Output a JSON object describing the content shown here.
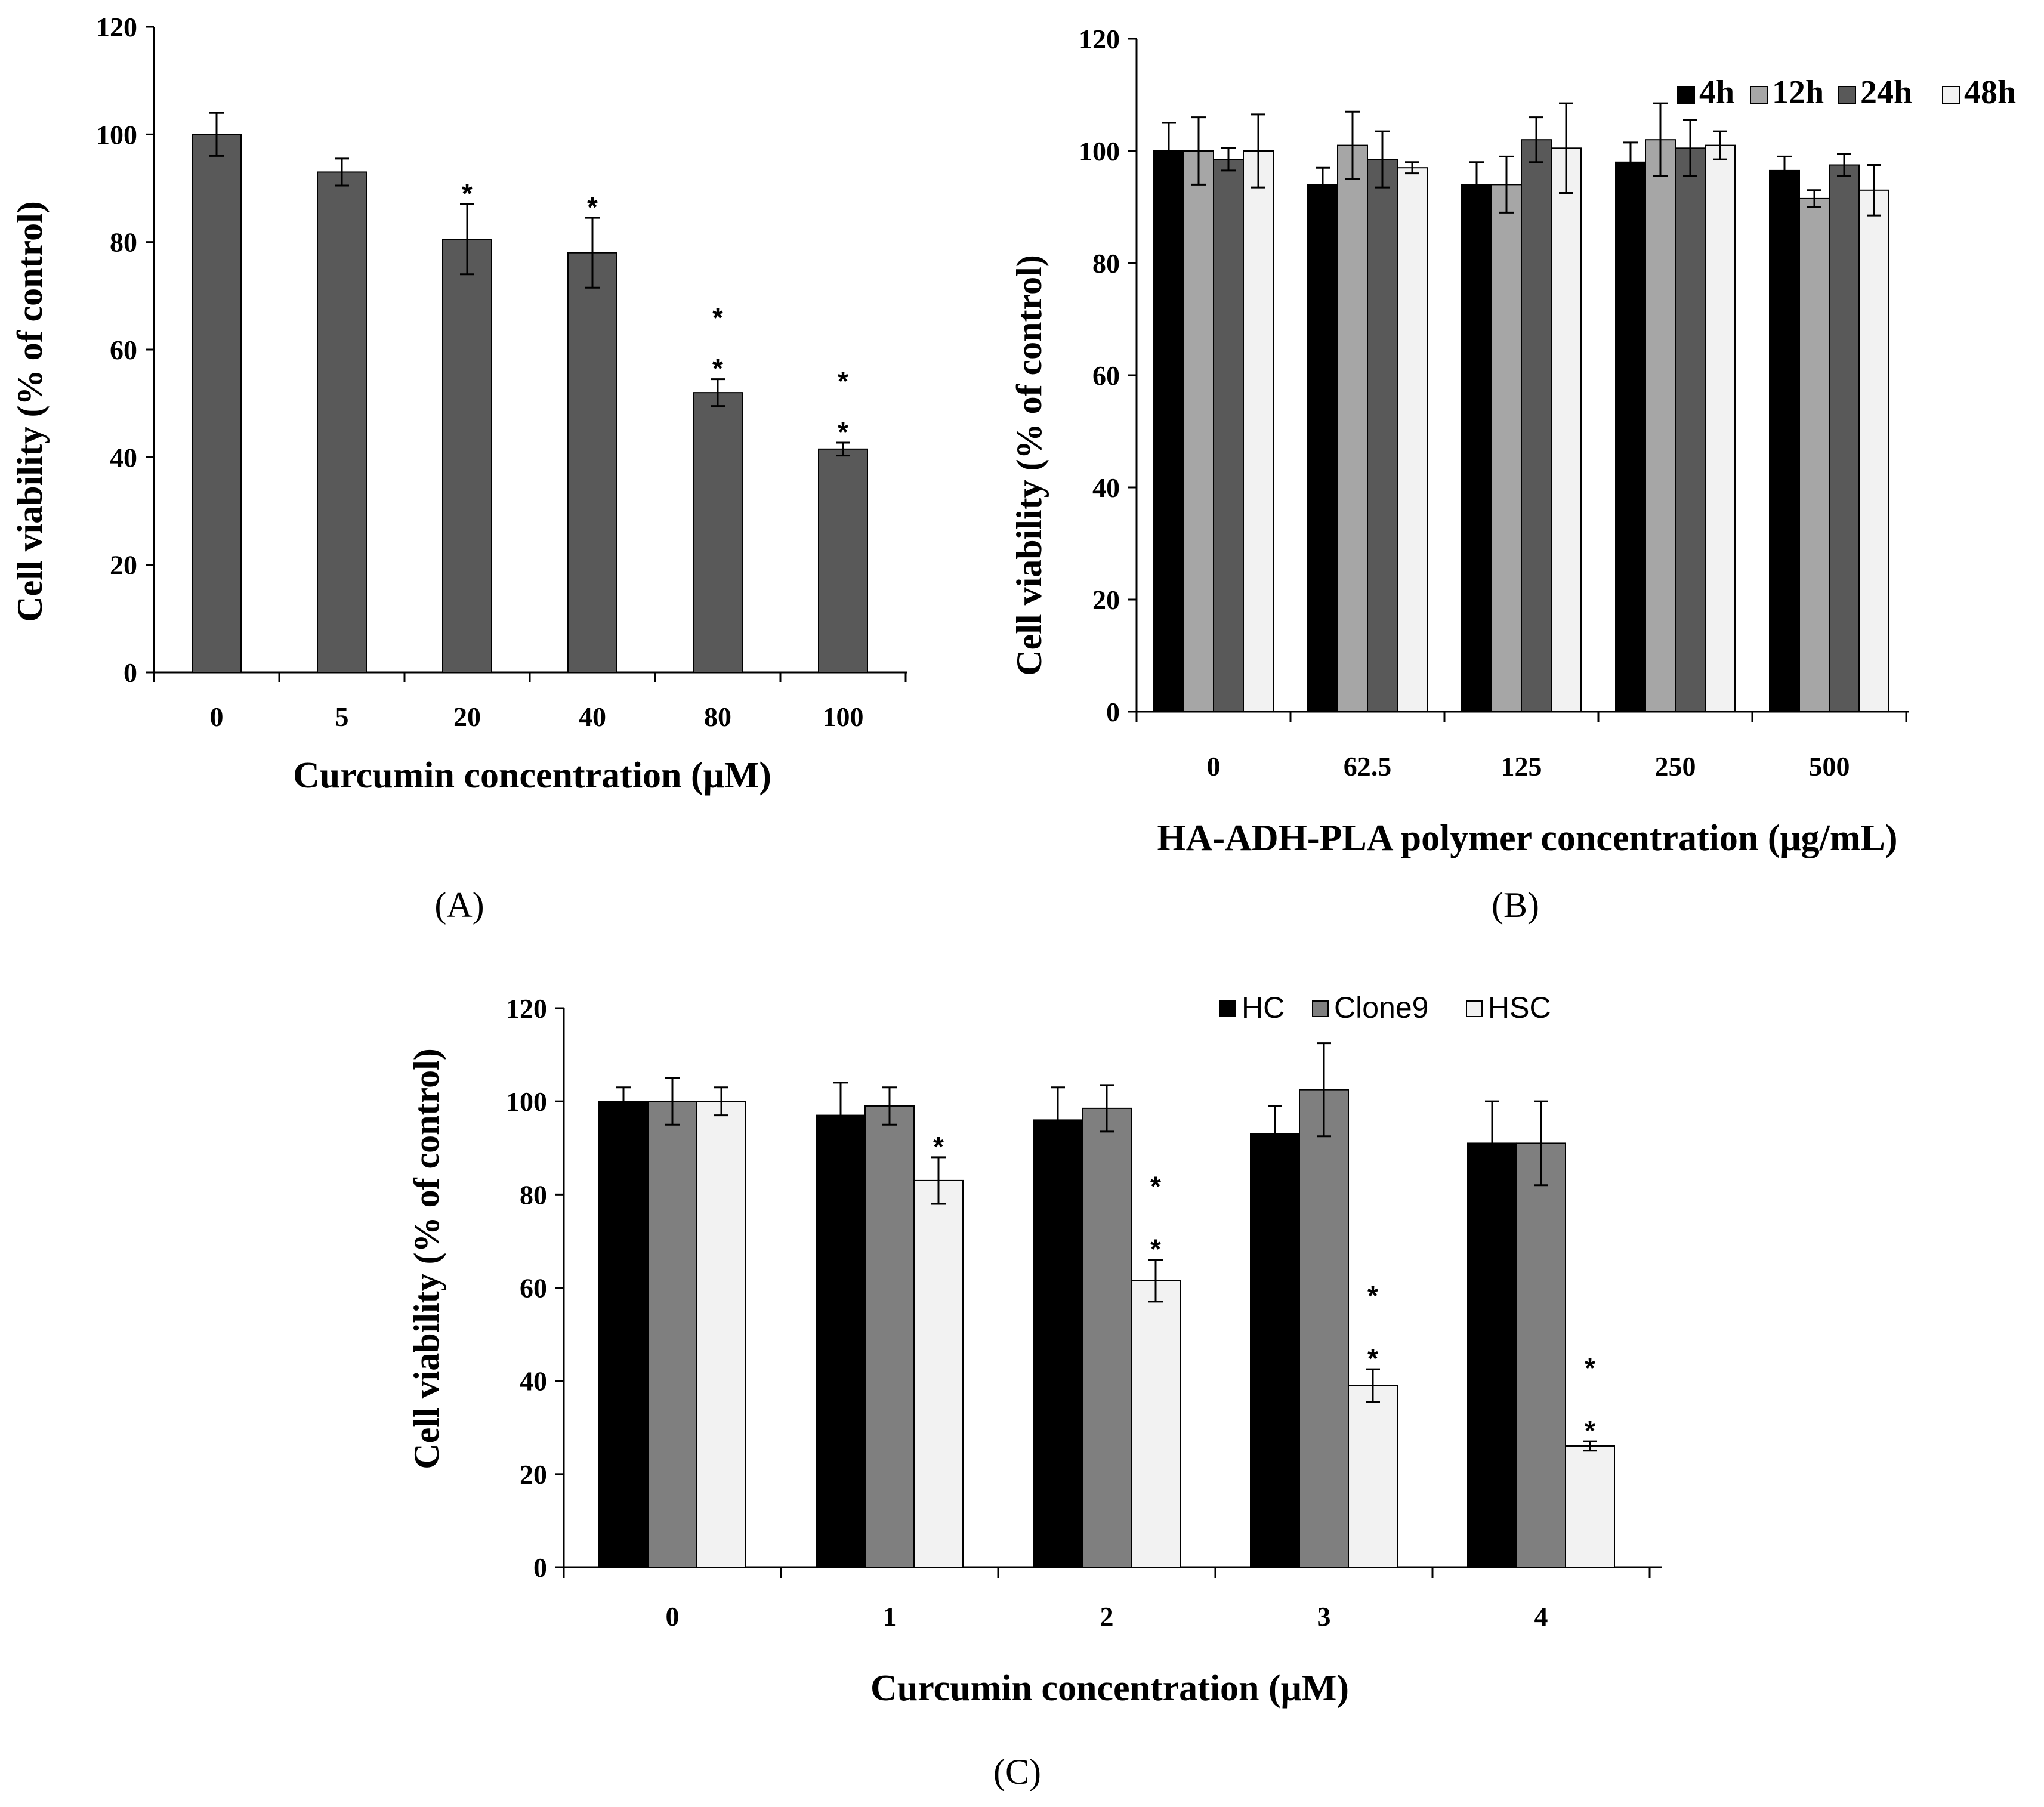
{
  "colors": {
    "axis": "#000000",
    "errorbar": "#000000"
  },
  "chart_data": [
    {
      "id": "A",
      "type": "bar",
      "panel_label": "(A)",
      "title": "",
      "xlabel": "Curcumin concentration (μM)",
      "ylabel": "Cell viability (% of control)",
      "ylim": [
        0,
        120
      ],
      "yticks": [
        "0",
        "20",
        "40",
        "60",
        "80",
        "100",
        "120"
      ],
      "categories": [
        "0",
        "5",
        "20",
        "40",
        "80",
        "100"
      ],
      "legend": false,
      "series": [
        {
          "name": "Curcumin",
          "color": "#595959",
          "values": [
            100,
            93,
            80.5,
            78,
            52,
            41.5
          ],
          "errors": [
            4,
            2.5,
            6.5,
            6.5,
            2.5,
            1.2
          ],
          "stars": [
            "",
            "",
            "*",
            "*",
            "*\n*",
            "*\n*"
          ]
        }
      ]
    },
    {
      "id": "B",
      "type": "bar",
      "panel_label": "(B)",
      "title": "",
      "xlabel": "HA-ADH-PLA polymer concentration (μg/mL)",
      "ylabel": "Cell viability (% of control)",
      "ylim": [
        0,
        120
      ],
      "yticks": [
        "0",
        "20",
        "40",
        "60",
        "80",
        "100",
        "120"
      ],
      "categories": [
        "0",
        "62.5",
        "125",
        "250",
        "500"
      ],
      "legend": true,
      "legend_position": "top-right",
      "series": [
        {
          "name": "4h",
          "color": "#000000",
          "values": [
            100,
            94,
            94,
            98,
            96.5
          ],
          "errors": [
            5,
            3,
            4,
            3.5,
            2.5
          ]
        },
        {
          "name": "12h",
          "color": "#a6a6a6",
          "values": [
            100,
            101,
            94,
            102,
            91.5
          ],
          "errors": [
            6,
            6,
            5,
            6.5,
            1.5
          ]
        },
        {
          "name": "24h",
          "color": "#595959",
          "values": [
            98.5,
            98.5,
            102,
            100.5,
            97.5
          ],
          "errors": [
            2,
            5,
            4,
            5,
            2
          ]
        },
        {
          "name": "48h",
          "color": "#f2f2f2",
          "values": [
            100,
            97,
            100.5,
            101,
            93
          ],
          "errors": [
            6.5,
            1,
            8,
            2.5,
            4.5
          ]
        }
      ]
    },
    {
      "id": "C",
      "type": "bar",
      "panel_label": "(C)",
      "title": "",
      "xlabel": "Curcumin concentration (μM)",
      "ylabel": "Cell viability (% of control)",
      "ylim": [
        0,
        120
      ],
      "yticks": [
        "0",
        "20",
        "40",
        "60",
        "80",
        "100",
        "120"
      ],
      "categories": [
        "0",
        "1",
        "2",
        "3",
        "4"
      ],
      "legend": true,
      "legend_position": "top-right",
      "series": [
        {
          "name": "HC",
          "color": "#000000",
          "values": [
            100,
            97,
            96,
            93,
            91
          ],
          "errors": [
            3,
            7,
            7,
            6,
            9
          ],
          "stars": [
            "",
            "",
            "",
            "",
            ""
          ]
        },
        {
          "name": "Clone9",
          "color": "#7f7f7f",
          "values": [
            100,
            99,
            98.5,
            102.5,
            91
          ],
          "errors": [
            5,
            4,
            5,
            10,
            9
          ],
          "stars": [
            "",
            "",
            "",
            "",
            ""
          ]
        },
        {
          "name": "HSC",
          "color": "#f2f2f2",
          "values": [
            100,
            83,
            61.5,
            39,
            26
          ],
          "errors": [
            3,
            5,
            4.5,
            3.5,
            1
          ],
          "stars": [
            "",
            "*",
            "*\n*",
            "*\n*",
            "*\n*"
          ]
        }
      ]
    }
  ]
}
